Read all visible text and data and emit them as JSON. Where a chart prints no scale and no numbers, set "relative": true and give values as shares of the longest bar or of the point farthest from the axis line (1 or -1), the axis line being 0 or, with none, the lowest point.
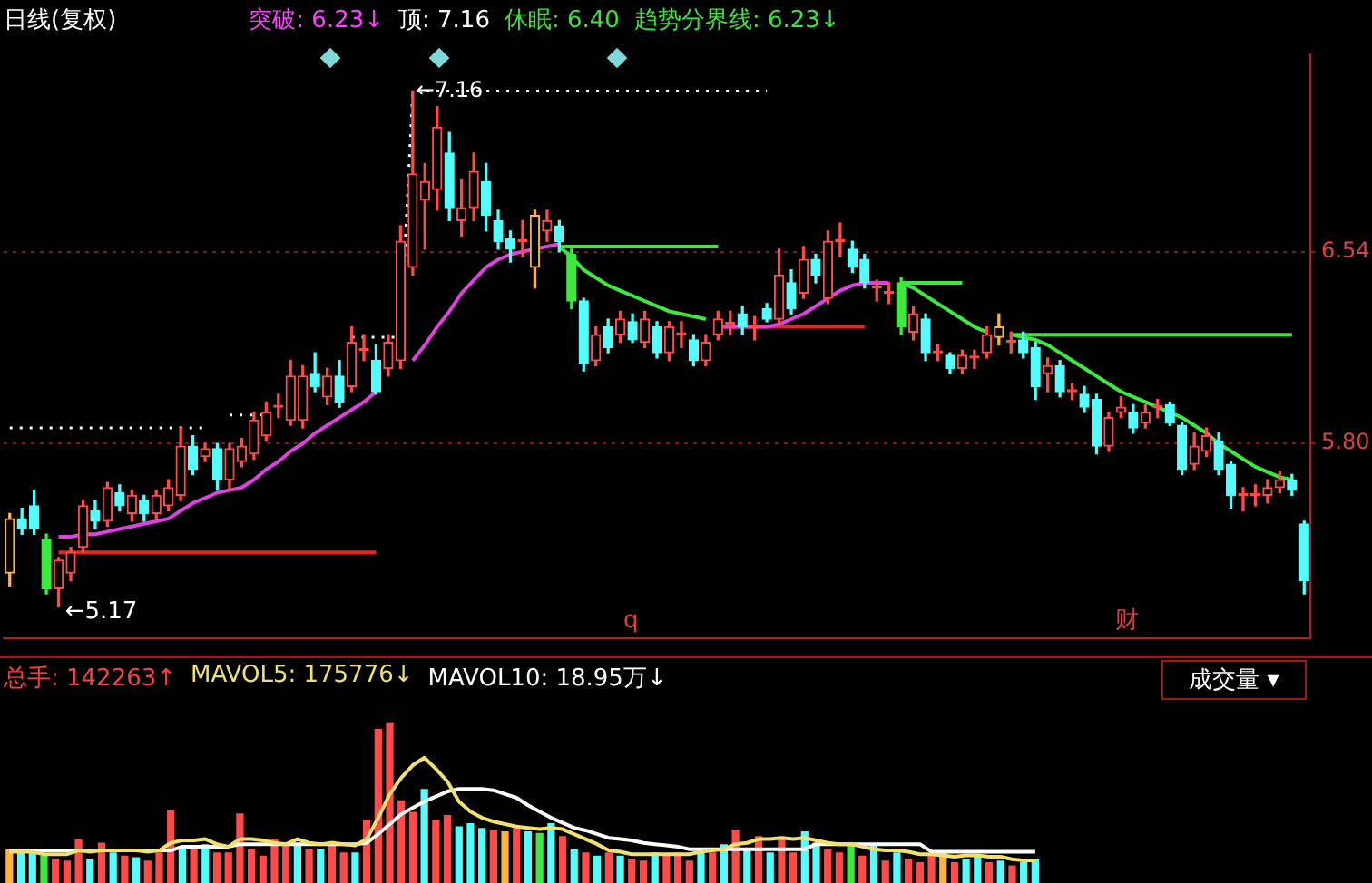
{
  "chart_data": [
    {
      "type": "candlestick",
      "title": "日线(复权)",
      "categories": [
        null,
        null,
        null,
        null,
        null,
        null,
        null,
        null,
        null,
        null,
        null,
        null,
        null,
        null,
        null,
        null,
        null,
        null,
        null,
        null,
        null,
        null,
        null,
        null,
        null,
        null,
        null,
        null,
        null,
        null,
        null,
        null,
        null,
        null,
        null,
        null,
        null,
        null,
        null,
        null,
        null,
        null,
        null,
        null,
        null,
        null,
        null,
        null,
        null,
        null,
        null,
        null,
        null,
        null,
        null,
        null,
        null,
        null,
        null,
        null,
        null,
        null,
        null,
        null,
        null,
        null,
        null,
        null,
        null,
        null,
        null,
        null,
        null,
        null,
        null,
        null,
        null,
        null,
        null,
        null,
        null,
        null,
        null,
        null,
        null,
        null,
        null,
        null,
        null,
        null,
        null,
        null,
        null,
        null,
        null,
        null,
        null,
        null,
        null,
        null,
        null,
        null,
        null,
        null,
        null,
        null,
        null
      ],
      "ohlc": [
        [
          5.3,
          5.53,
          5.25,
          5.51
        ],
        [
          5.51,
          5.55,
          5.45,
          5.47
        ],
        [
          5.56,
          5.62,
          5.45,
          5.47
        ],
        [
          5.43,
          5.45,
          5.22,
          5.24
        ],
        [
          5.24,
          5.36,
          5.17,
          5.35
        ],
        [
          5.3,
          5.4,
          5.27,
          5.38
        ],
        [
          5.4,
          5.58,
          5.38,
          5.56
        ],
        [
          5.54,
          5.58,
          5.47,
          5.5
        ],
        [
          5.5,
          5.65,
          5.48,
          5.63
        ],
        [
          5.61,
          5.64,
          5.54,
          5.56
        ],
        [
          5.53,
          5.62,
          5.5,
          5.6
        ],
        [
          5.58,
          5.6,
          5.5,
          5.53
        ],
        [
          5.53,
          5.62,
          5.51,
          5.6
        ],
        [
          5.56,
          5.66,
          5.54,
          5.63
        ],
        [
          5.6,
          5.86,
          5.58,
          5.79
        ],
        [
          5.79,
          5.83,
          5.68,
          5.7
        ],
        [
          5.75,
          5.8,
          5.73,
          5.78
        ],
        [
          5.78,
          5.8,
          5.62,
          5.66
        ],
        [
          5.66,
          5.8,
          5.62,
          5.78
        ],
        [
          5.73,
          5.82,
          5.71,
          5.79
        ],
        [
          5.76,
          5.92,
          5.74,
          5.89
        ],
        [
          5.83,
          5.96,
          5.81,
          5.92
        ],
        [
          5.94,
          5.99,
          5.9,
          5.94
        ],
        [
          5.89,
          6.12,
          5.87,
          6.06
        ],
        [
          5.89,
          6.1,
          5.86,
          6.06
        ],
        [
          6.07,
          6.15,
          6.0,
          6.02
        ],
        [
          5.98,
          6.09,
          5.95,
          6.06
        ],
        [
          6.06,
          6.12,
          5.94,
          5.96
        ],
        [
          6.02,
          6.25,
          6.0,
          6.19
        ],
        [
          6.16,
          6.22,
          6.12,
          6.16
        ],
        [
          6.12,
          6.18,
          5.99,
          6.0
        ],
        [
          6.09,
          6.22,
          6.06,
          6.19
        ],
        [
          6.12,
          6.64,
          6.09,
          6.58
        ],
        [
          6.48,
          7.16,
          6.45,
          6.84
        ],
        [
          6.74,
          6.88,
          6.55,
          6.81
        ],
        [
          6.78,
          7.1,
          6.7,
          7.02
        ],
        [
          6.92,
          7.0,
          6.66,
          6.71
        ],
        [
          6.66,
          6.82,
          6.6,
          6.71
        ],
        [
          6.71,
          6.92,
          6.66,
          6.85
        ],
        [
          6.81,
          6.88,
          6.62,
          6.68
        ],
        [
          6.66,
          6.7,
          6.55,
          6.58
        ],
        [
          6.59,
          6.62,
          6.5,
          6.55
        ],
        [
          6.58,
          6.66,
          6.52,
          6.58
        ],
        [
          6.48,
          6.7,
          6.4,
          6.68
        ],
        [
          6.62,
          6.7,
          6.58,
          6.66
        ],
        [
          6.64,
          6.66,
          6.54,
          6.58
        ],
        [
          6.53,
          6.55,
          6.32,
          6.35
        ],
        [
          6.35,
          6.36,
          6.08,
          6.11
        ],
        [
          6.12,
          6.25,
          6.1,
          6.22
        ],
        [
          6.25,
          6.28,
          6.15,
          6.17
        ],
        [
          6.22,
          6.31,
          6.19,
          6.28
        ],
        [
          6.27,
          6.3,
          6.19,
          6.2
        ],
        [
          6.19,
          6.31,
          6.17,
          6.28
        ],
        [
          6.25,
          6.27,
          6.13,
          6.15
        ],
        [
          6.15,
          6.27,
          6.12,
          6.25
        ],
        [
          6.22,
          6.27,
          6.17,
          6.22
        ],
        [
          6.2,
          6.22,
          6.1,
          6.12
        ],
        [
          6.12,
          6.22,
          6.1,
          6.19
        ],
        [
          6.22,
          6.31,
          6.2,
          6.28
        ],
        [
          6.26,
          6.31,
          6.22,
          6.26
        ],
        [
          6.3,
          6.33,
          6.22,
          6.25
        ],
        [
          6.25,
          6.29,
          6.2,
          6.25
        ],
        [
          6.32,
          6.34,
          6.27,
          6.28
        ],
        [
          6.28,
          6.55,
          6.26,
          6.45
        ],
        [
          6.42,
          6.47,
          6.3,
          6.32
        ],
        [
          6.38,
          6.56,
          6.36,
          6.51
        ],
        [
          6.51,
          6.53,
          6.42,
          6.45
        ],
        [
          6.36,
          6.62,
          6.34,
          6.58
        ],
        [
          6.58,
          6.65,
          6.52,
          6.58
        ],
        [
          6.55,
          6.58,
          6.46,
          6.48
        ],
        [
          6.51,
          6.53,
          6.4,
          6.42
        ],
        [
          6.4,
          6.43,
          6.35,
          6.4
        ],
        [
          6.38,
          6.42,
          6.34,
          6.38
        ],
        [
          6.42,
          6.44,
          6.22,
          6.25
        ],
        [
          6.23,
          6.33,
          6.2,
          6.3
        ],
        [
          6.28,
          6.3,
          6.12,
          6.15
        ],
        [
          6.15,
          6.18,
          6.12,
          6.15
        ],
        [
          6.14,
          6.15,
          6.07,
          6.09
        ],
        [
          6.09,
          6.16,
          6.07,
          6.14
        ],
        [
          6.13,
          6.16,
          6.09,
          6.13
        ],
        [
          6.15,
          6.25,
          6.13,
          6.22
        ],
        [
          6.21,
          6.3,
          6.18,
          6.25
        ],
        [
          6.19,
          6.23,
          6.15,
          6.19
        ],
        [
          6.2,
          6.23,
          6.13,
          6.15
        ],
        [
          6.17,
          6.19,
          5.97,
          6.02
        ],
        [
          6.07,
          6.13,
          6.0,
          6.1
        ],
        [
          6.1,
          6.12,
          5.98,
          6.0
        ],
        [
          6.0,
          6.03,
          5.97,
          6.0
        ],
        [
          5.99,
          6.02,
          5.92,
          5.94
        ],
        [
          5.97,
          5.99,
          5.76,
          5.79
        ],
        [
          5.79,
          5.92,
          5.77,
          5.9
        ],
        [
          5.92,
          5.98,
          5.9,
          5.94
        ],
        [
          5.92,
          5.95,
          5.84,
          5.86
        ],
        [
          5.88,
          5.95,
          5.86,
          5.92
        ],
        [
          5.94,
          5.97,
          5.9,
          5.94
        ],
        [
          5.95,
          5.96,
          5.87,
          5.88
        ],
        [
          5.87,
          5.88,
          5.68,
          5.7
        ],
        [
          5.72,
          5.84,
          5.7,
          5.79
        ],
        [
          5.77,
          5.86,
          5.75,
          5.83
        ],
        [
          5.81,
          5.84,
          5.68,
          5.7
        ],
        [
          5.72,
          5.73,
          5.55,
          5.6
        ],
        [
          5.6,
          5.63,
          5.54,
          5.6
        ],
        [
          5.6,
          5.64,
          5.56,
          5.6
        ],
        [
          5.6,
          5.66,
          5.57,
          5.63
        ],
        [
          5.63,
          5.69,
          5.61,
          5.66
        ],
        [
          5.66,
          5.68,
          5.6,
          5.62
        ],
        [
          5.49,
          5.5,
          5.22,
          5.27
        ]
      ],
      "colors": [
        "#ffb23e",
        "#54fcfc",
        "#54fcfc",
        "#3ee83e",
        "#ff4a4a",
        "#ff4a4a",
        "#ff4a4a",
        "#54fcfc",
        "#ff4a4a",
        "#54fcfc",
        "#ff4a4a",
        "#54fcfc",
        "#ff4a4a",
        "#ff4a4a",
        "#ff4a4a",
        "#54fcfc",
        "#ff4a4a",
        "#54fcfc",
        "#ff4a4a",
        "#ff4a4a",
        "#ff4a4a",
        "#ff4a4a",
        "#ff4a4a",
        "#ff4a4a",
        "#ff4a4a",
        "#54fcfc",
        "#ff4a4a",
        "#54fcfc",
        "#ff4a4a",
        "#ff4a4a",
        "#54fcfc",
        "#ff4a4a",
        "#ff4a4a",
        "#ff4a4a",
        "#ff4a4a",
        "#ff4a4a",
        "#54fcfc",
        "#ff4a4a",
        "#ff4a4a",
        "#54fcfc",
        "#54fcfc",
        "#54fcfc",
        "#ff4a4a",
        "#ffb23e",
        "#ff4a4a",
        "#54fcfc",
        "#3ee83e",
        "#54fcfc",
        "#ff4a4a",
        "#54fcfc",
        "#ff4a4a",
        "#54fcfc",
        "#ff4a4a",
        "#54fcfc",
        "#ff4a4a",
        "#ff4a4a",
        "#54fcfc",
        "#ff4a4a",
        "#ff4a4a",
        "#ff4a4a",
        "#54fcfc",
        "#ff4a4a",
        "#54fcfc",
        "#ff4a4a",
        "#54fcfc",
        "#ff4a4a",
        "#54fcfc",
        "#ff4a4a",
        "#ff4a4a",
        "#54fcfc",
        "#54fcfc",
        "#ff4a4a",
        "#ff4a4a",
        "#3ee83e",
        "#ff4a4a",
        "#54fcfc",
        "#ff4a4a",
        "#54fcfc",
        "#ff4a4a",
        "#ff4a4a",
        "#ff4a4a",
        "#ffb23e",
        "#ff4a4a",
        "#54fcfc",
        "#54fcfc",
        "#ff4a4a",
        "#54fcfc",
        "#ff4a4a",
        "#54fcfc",
        "#54fcfc",
        "#ff4a4a",
        "#ff4a4a",
        "#54fcfc",
        "#ff4a4a",
        "#ff4a4a",
        "#54fcfc",
        "#54fcfc",
        "#ff4a4a",
        "#ff4a4a",
        "#54fcfc",
        "#54fcfc",
        "#ff4a4a",
        "#ff4a4a",
        "#ff4a4a",
        "#ff4a4a",
        "#54fcfc",
        "#54fcfc"
      ],
      "ylim": [
        5.05,
        7.3
      ],
      "yticks": [
        6.54,
        {
          "value": 5.8,
          "label": "5.80"
        }
      ],
      "grid": "y",
      "annotations": [
        "突破: 6.23↓",
        "顶: 7.16",
        "休眠: 6.40",
        "趋势分界线: 6.23↓",
        "q",
        "财",
        "←5.17",
        {
          "text": "←7.16",
          "y": 7.16
        }
      ],
      "series": [
        {
          "type": "line",
          "color": "#e040e0",
          "values": [
            null,
            null,
            null,
            null,
            5.44,
            5.44,
            5.45,
            5.45,
            5.46,
            5.47,
            5.48,
            5.49,
            5.5,
            5.51,
            5.54,
            5.57,
            5.59,
            5.61,
            5.62,
            5.63,
            5.66,
            5.7,
            5.73,
            5.77,
            5.8,
            5.84,
            5.87,
            5.9,
            5.93,
            5.96,
            6.0,
            null,
            null,
            6.12,
            6.18,
            6.25,
            6.31,
            6.38,
            6.43,
            6.48,
            6.51,
            6.53,
            6.54,
            6.55,
            6.56,
            6.57,
            null,
            null,
            null,
            null,
            null,
            null,
            null,
            null,
            null,
            null,
            null,
            null,
            6.25,
            6.25,
            6.25,
            6.25,
            6.25,
            6.26,
            6.28,
            6.3,
            6.33,
            6.36,
            6.39,
            6.41,
            6.42,
            6.42,
            6.42,
            null,
            null,
            null,
            null,
            null,
            null,
            null,
            null,
            null,
            null,
            null,
            null,
            null,
            null,
            null,
            null,
            null,
            null,
            null,
            null,
            null,
            null,
            null,
            null,
            null,
            null,
            null,
            null,
            null,
            null,
            null,
            null,
            null,
            null
          ]
        },
        {
          "type": "line",
          "color": "#3ee83e",
          "values": [
            null,
            null,
            null,
            null,
            null,
            null,
            null,
            null,
            null,
            null,
            null,
            null,
            null,
            null,
            null,
            null,
            null,
            null,
            null,
            null,
            null,
            null,
            null,
            null,
            null,
            null,
            null,
            null,
            null,
            null,
            null,
            null,
            null,
            null,
            null,
            null,
            null,
            null,
            null,
            null,
            null,
            null,
            null,
            null,
            null,
            6.56,
            6.52,
            6.47,
            6.44,
            6.41,
            6.39,
            6.37,
            6.35,
            6.33,
            6.31,
            6.3,
            6.29,
            6.28,
            null,
            null,
            null,
            null,
            null,
            null,
            null,
            null,
            null,
            null,
            null,
            null,
            null,
            null,
            null,
            6.42,
            6.4,
            6.37,
            6.34,
            6.31,
            6.28,
            6.25,
            6.23,
            null,
            6.22,
            6.21,
            6.2,
            6.18,
            6.15,
            6.12,
            6.09,
            6.06,
            6.03,
            6.0,
            5.98,
            5.96,
            5.94,
            5.92,
            5.9,
            5.87,
            5.84,
            5.8,
            5.77,
            5.74,
            5.71,
            5.69,
            5.67,
            5.66,
            null
          ]
        },
        {
          "type": "line",
          "color": "#3ee83e",
          "values": [
            null,
            null,
            null,
            null,
            null,
            null,
            null,
            null,
            null,
            null,
            null,
            null,
            null,
            null,
            null,
            null,
            null,
            null,
            null,
            null,
            null,
            null,
            null,
            null,
            null,
            null,
            null,
            null,
            null,
            null,
            null,
            null,
            null,
            null,
            null,
            null,
            null,
            null,
            null,
            null,
            null,
            null,
            null,
            null,
            null,
            6.56,
            6.56,
            6.56,
            6.56,
            6.56,
            6.56,
            6.56,
            6.56,
            6.56,
            6.56,
            6.56,
            6.56,
            6.56,
            6.56,
            null,
            null,
            null,
            null,
            null,
            null,
            null,
            null,
            null,
            null,
            null,
            null,
            null,
            null,
            6.42,
            6.42,
            6.42,
            6.42,
            6.42,
            6.42,
            null,
            null,
            null,
            6.22,
            6.22,
            6.22,
            6.22,
            6.22,
            6.22,
            6.22,
            6.22,
            6.22,
            6.22,
            6.22,
            6.22,
            6.22,
            6.22,
            6.22,
            6.22,
            6.22,
            6.22,
            6.22,
            6.22,
            6.22,
            6.22,
            6.22,
            6.22,
            null
          ]
        },
        {
          "type": "line",
          "color": "#e02828",
          "values": [
            null,
            null,
            null,
            null,
            5.38,
            5.38,
            5.38,
            5.38,
            5.38,
            5.38,
            5.38,
            5.38,
            5.38,
            5.38,
            5.38,
            5.38,
            5.38,
            5.38,
            5.38,
            5.38,
            5.38,
            5.38,
            5.38,
            5.38,
            5.38,
            5.38,
            5.38,
            5.38,
            5.38,
            5.38,
            5.38,
            null,
            null,
            null,
            null,
            null,
            null,
            null,
            null,
            null,
            null,
            null,
            null,
            null,
            null,
            null,
            null,
            null,
            null,
            null,
            null,
            null,
            null,
            null,
            null,
            null,
            null,
            null,
            6.25,
            6.25,
            6.25,
            6.25,
            6.25,
            6.25,
            6.25,
            6.25,
            6.25,
            6.25,
            6.25,
            6.25,
            6.25,
            null,
            null,
            null,
            null,
            null,
            null,
            null,
            null,
            null,
            null,
            null,
            null,
            null,
            null,
            null,
            null,
            null,
            null,
            null,
            null,
            null,
            null,
            null,
            null,
            null,
            null,
            null,
            null,
            null,
            null,
            null,
            null,
            null,
            null,
            null,
            null
          ]
        },
        {
          "type": "line",
          "color": "#ffffff",
          "line_style": "dotted",
          "values": [
            5.86,
            5.86,
            5.86,
            5.86,
            5.86,
            5.86,
            5.86,
            5.86,
            5.86,
            5.86,
            5.86,
            5.86,
            5.86,
            5.86,
            5.86,
            5.86,
            5.86,
            null,
            5.91,
            5.91,
            5.91,
            5.91,
            null,
            null,
            null,
            null,
            null,
            null,
            6.21,
            6.21,
            6.21,
            6.21,
            6.21,
            7.16,
            7.16,
            7.16,
            7.16,
            7.16,
            7.16,
            7.16,
            7.16,
            7.16,
            7.16,
            7.16,
            7.16,
            7.16,
            7.16,
            7.16,
            7.16,
            7.16,
            7.16,
            7.16,
            7.16,
            7.16,
            7.16,
            7.16,
            7.16,
            7.16,
            7.16,
            7.16,
            7.16,
            7.16,
            7.16,
            null,
            null,
            null,
            null,
            null,
            null,
            null,
            null,
            null,
            null,
            null,
            null,
            null,
            null,
            null,
            null,
            null,
            null,
            null,
            null,
            null,
            null,
            null,
            null,
            null,
            null,
            null,
            null,
            null,
            null,
            null,
            null,
            null,
            null,
            null,
            null,
            null,
            null,
            null,
            null,
            null,
            null,
            null,
            null
          ]
        }
      ]
    },
    {
      "type": "bar",
      "relative": true,
      "categories": [
        null,
        null,
        null,
        null,
        null,
        null,
        null,
        null,
        null,
        null,
        null,
        null,
        null,
        null,
        null,
        null,
        null,
        null,
        null,
        null,
        null,
        null,
        null,
        null,
        null,
        null,
        null,
        null,
        null,
        null,
        null,
        null,
        null,
        null,
        null,
        null,
        null,
        null,
        null,
        null,
        null,
        null,
        null,
        null,
        null,
        null,
        null,
        null,
        null,
        null,
        null,
        null,
        null,
        null,
        null,
        null,
        null,
        null,
        null,
        null,
        null,
        null,
        null,
        null,
        null,
        null,
        null,
        null,
        null,
        null,
        null,
        null,
        null,
        null,
        null,
        null,
        null,
        null,
        null,
        null,
        null,
        null,
        null,
        null,
        null,
        null,
        null,
        null,
        null,
        null
      ],
      "annotations": [
        "总手: 142263↑",
        "MAVOL5: 175776↓",
        "MAVOL10: 18.95万↓",
        "成交量 ▾"
      ],
      "colors": [
        "#ffb23e",
        "#54fcfc",
        "#54fcfc",
        "#3ee83e",
        "#ff4a4a",
        "#ff4a4a",
        "#ff4a4a",
        "#54fcfc",
        "#ff4a4a",
        "#54fcfc",
        "#ff4a4a",
        "#54fcfc",
        "#ff4a4a",
        "#ff4a4a",
        "#ff4a4a",
        "#54fcfc",
        "#ff4a4a",
        "#54fcfc",
        "#ff4a4a",
        "#ff4a4a",
        "#ff4a4a",
        "#ff4a4a",
        "#ff4a4a",
        "#ff4a4a",
        "#ff4a4a",
        "#54fcfc",
        "#ff4a4a",
        "#54fcfc",
        "#ff4a4a",
        "#ff4a4a",
        "#54fcfc",
        "#ff4a4a",
        "#ff4a4a",
        "#ff4a4a",
        "#ff4a4a",
        "#ff4a4a",
        "#54fcfc",
        "#ff4a4a",
        "#ff4a4a",
        "#54fcfc",
        "#54fcfc",
        "#54fcfc",
        "#ff4a4a",
        "#ffb23e",
        "#ff4a4a",
        "#54fcfc",
        "#3ee83e",
        "#54fcfc",
        "#ff4a4a",
        "#54fcfc",
        "#ff4a4a",
        "#54fcfc",
        "#ff4a4a",
        "#54fcfc",
        "#ff4a4a",
        "#ff4a4a",
        "#54fcfc",
        "#ff4a4a",
        "#ff4a4a",
        "#ff4a4a",
        "#54fcfc",
        "#ff4a4a",
        "#54fcfc",
        "#ff4a4a",
        "#54fcfc",
        "#ff4a4a",
        "#54fcfc",
        "#ff4a4a",
        "#ff4a4a",
        "#54fcfc",
        "#54fcfc",
        "#ff4a4a",
        "#ff4a4a",
        "#3ee83e",
        "#ff4a4a",
        "#54fcfc",
        "#ff4a4a",
        "#54fcfc",
        "#ff4a4a",
        "#ff4a4a",
        "#ff4a4a",
        "#ffb23e",
        "#ff4a4a",
        "#54fcfc",
        "#54fcfc",
        "#ff4a4a",
        "#54fcfc",
        "#ff4a4a",
        "#54fcfc",
        "#54fcfc"
      ],
      "values": [
        0.22,
        0.2,
        0.2,
        0.18,
        0.16,
        0.15,
        0.28,
        0.16,
        0.26,
        0.2,
        0.18,
        0.17,
        0.15,
        0.2,
        0.46,
        0.24,
        0.22,
        0.25,
        0.2,
        0.2,
        0.44,
        0.22,
        0.18,
        0.28,
        0.26,
        0.24,
        0.22,
        0.22,
        0.27,
        0.2,
        0.2,
        0.4,
        0.96,
        1,
        0.52,
        0.45,
        0.59,
        0.4,
        0.43,
        0.36,
        0.38,
        0.35,
        0.34,
        0.33,
        0.35,
        0.33,
        0.32,
        0.38,
        0.3,
        0.22,
        0.2,
        0.18,
        0.2,
        0.18,
        0.16,
        0.15,
        0.2,
        0.18,
        0.2,
        0.15,
        0.22,
        0.2,
        0.25,
        0.34,
        0.22,
        0.3,
        0.2,
        0.29,
        0.2,
        0.33,
        0.26,
        0.22,
        0.2,
        0.25,
        0.18,
        0.24,
        0.15,
        0.2,
        0.16,
        0.14,
        0.18,
        0.2,
        0.14,
        0.16,
        0.18,
        0.14,
        0.15,
        0.12,
        0.14,
        0.16
      ]
    },
    {
      "type": "line",
      "relative": true,
      "categories": [
        null,
        null,
        null,
        null,
        null,
        null,
        null,
        null,
        null,
        null,
        null,
        null,
        null,
        null,
        null,
        null,
        null,
        null,
        null,
        null,
        null,
        null,
        null,
        null,
        null,
        null,
        null,
        null,
        null,
        null,
        null,
        null,
        null,
        null,
        null,
        null,
        null,
        null,
        null,
        null,
        null,
        null,
        null,
        null,
        null,
        null,
        null,
        null,
        null,
        null,
        null,
        null,
        null,
        null,
        null,
        null,
        null,
        null,
        null,
        null,
        null,
        null,
        null,
        null,
        null,
        null,
        null,
        null,
        null,
        null,
        null,
        null,
        null,
        null,
        null,
        null,
        null,
        null,
        null,
        null,
        null,
        null,
        null,
        null,
        null,
        null,
        null,
        null,
        null,
        null
      ],
      "series": [
        {
          "type": "line",
          "color": "#f0e070",
          "values": [
            0.25,
            0.25,
            0.25,
            0.23,
            0.23,
            0.23,
            0.26,
            0.25,
            0.26,
            0.26,
            0.26,
            0.26,
            0.25,
            0.26,
            0.32,
            0.34,
            0.34,
            0.35,
            0.31,
            0.29,
            0.35,
            0.35,
            0.34,
            0.32,
            0.31,
            0.35,
            0.32,
            0.31,
            0.32,
            0.31,
            0.3,
            0.35,
            0.52,
            0.71,
            0.84,
            0.94,
            1,
            0.91,
            0.81,
            0.65,
            0.57,
            0.52,
            0.49,
            0.47,
            0.45,
            0.44,
            0.43,
            0.44,
            0.43,
            0.39,
            0.35,
            0.31,
            0.26,
            0.25,
            0.23,
            0.23,
            0.23,
            0.23,
            0.23,
            0.23,
            0.25,
            0.26,
            0.27,
            0.31,
            0.32,
            0.35,
            0.35,
            0.36,
            0.35,
            0.36,
            0.34,
            0.32,
            0.31,
            0.31,
            0.29,
            0.27,
            0.26,
            0.26,
            0.25,
            0.23,
            0.23,
            0.22,
            0.21,
            0.22,
            0.22,
            0.21,
            0.21,
            0.19,
            0.18,
            0.18
          ]
        },
        {
          "type": "line",
          "color": "#ffffff",
          "values": [
            0.26,
            0.26,
            0.26,
            0.26,
            0.26,
            0.26,
            0.26,
            0.26,
            0.26,
            0.26,
            0.26,
            0.26,
            0.26,
            0.26,
            0.26,
            0.29,
            0.29,
            0.29,
            0.29,
            0.29,
            0.31,
            0.31,
            0.31,
            0.31,
            0.31,
            0.31,
            0.31,
            0.31,
            0.31,
            0.31,
            0.31,
            0.32,
            0.39,
            0.47,
            0.55,
            0.6,
            0.65,
            0.69,
            0.73,
            0.75,
            0.75,
            0.75,
            0.74,
            0.71,
            0.68,
            0.62,
            0.57,
            0.52,
            0.48,
            0.44,
            0.42,
            0.39,
            0.36,
            0.35,
            0.34,
            0.32,
            0.31,
            0.3,
            0.29,
            0.27,
            0.27,
            0.27,
            0.27,
            0.27,
            0.27,
            0.27,
            0.27,
            0.27,
            0.27,
            0.27,
            0.31,
            0.31,
            0.31,
            0.31,
            0.31,
            0.31,
            0.31,
            0.31,
            0.31,
            0.31,
            0.25,
            0.25,
            0.25,
            0.25,
            0.25,
            0.25,
            0.25,
            0.25,
            0.25,
            0.25
          ]
        }
      ]
    }
  ]
}
